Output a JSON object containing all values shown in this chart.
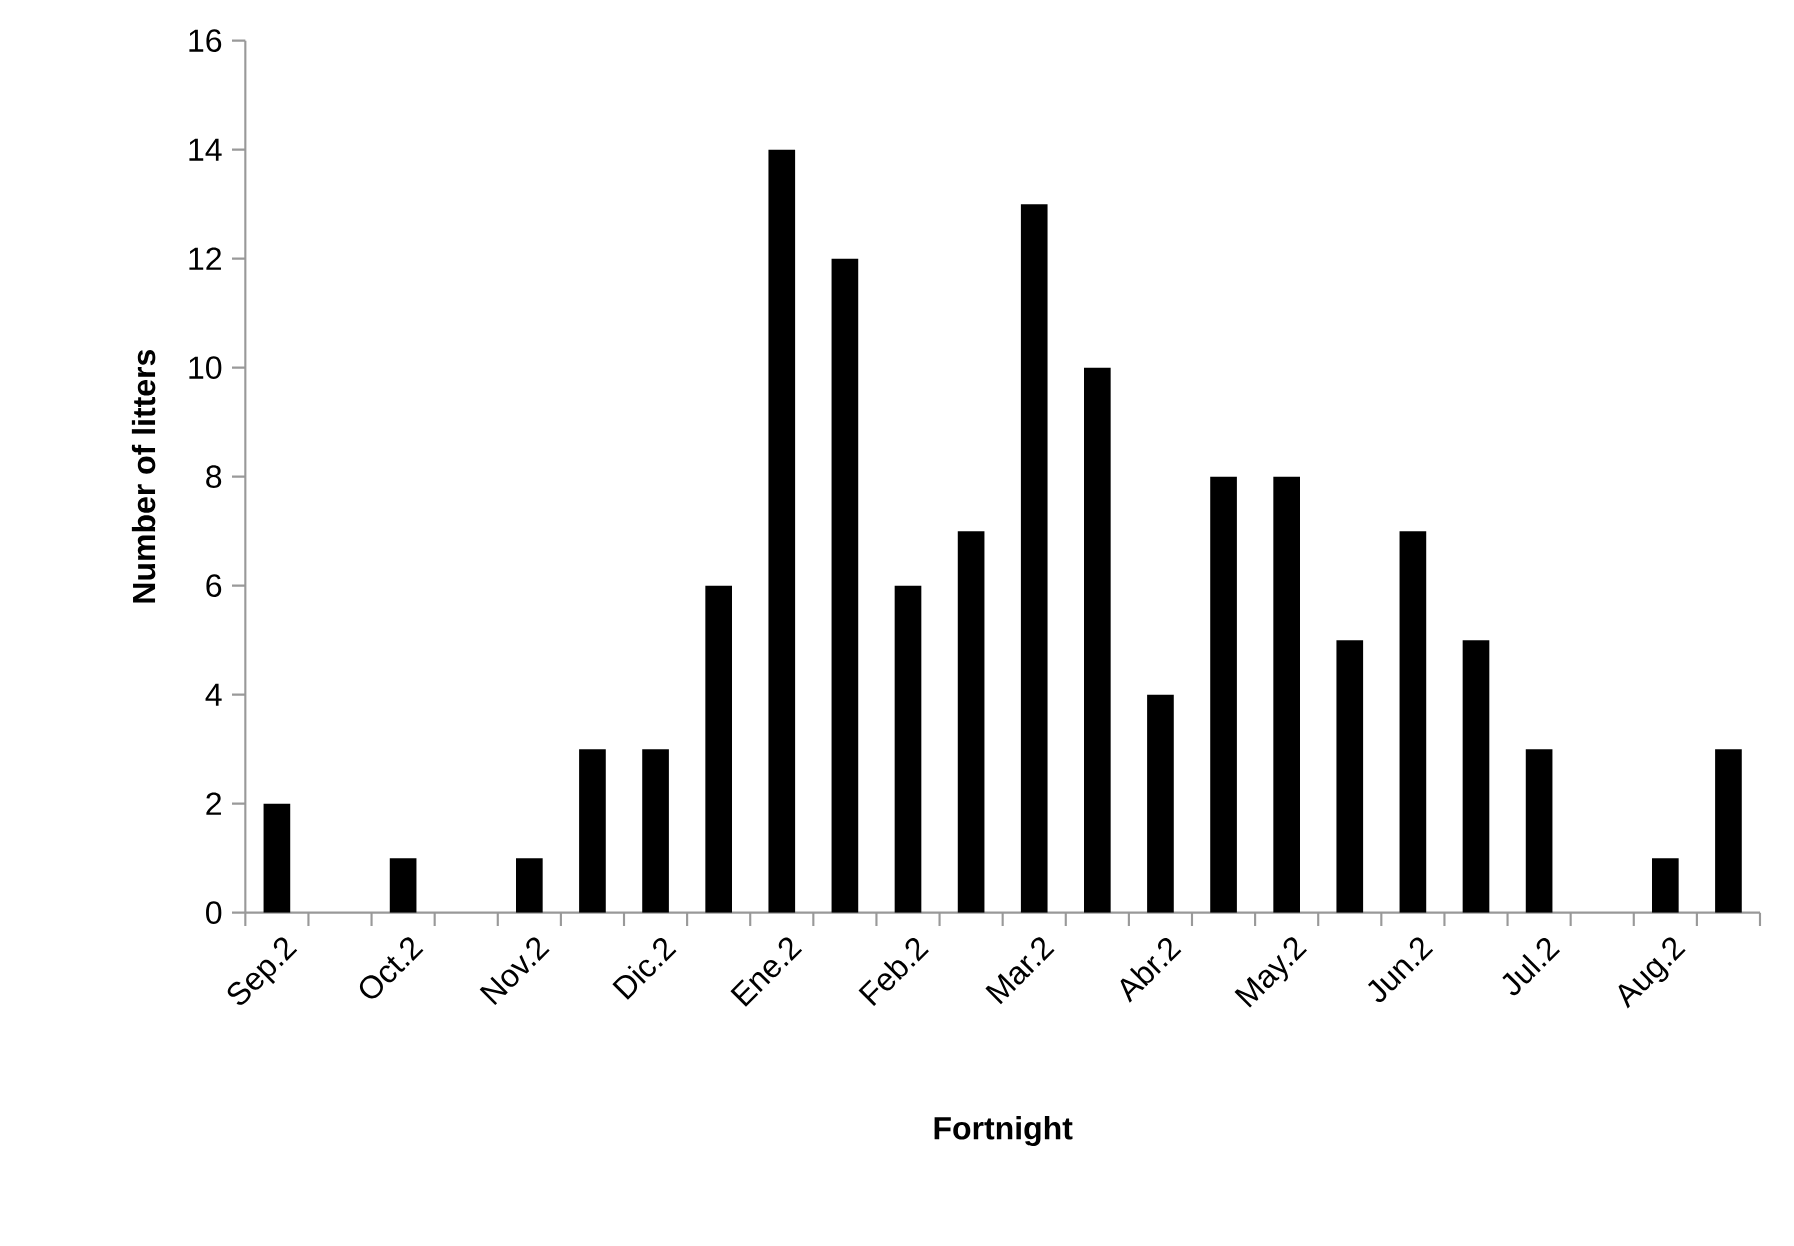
{
  "chart_data": {
    "type": "bar",
    "xlabel": "Fortnight",
    "ylabel": "Number of litters",
    "categories": [
      "Sep.2",
      null,
      "Oct.2",
      null,
      "Nov.2",
      null,
      "Dic.2",
      null,
      "Ene.2",
      null,
      "Feb.2",
      null,
      "Mar.2",
      null,
      "Abr.2",
      null,
      "May.2",
      null,
      "Jun.2",
      null,
      "Jul.2",
      null,
      "Aug.2",
      null
    ],
    "values": [
      2,
      0,
      1,
      0,
      1,
      3,
      3,
      6,
      14,
      12,
      6,
      7,
      13,
      10,
      4,
      8,
      8,
      5,
      7,
      5,
      3,
      0,
      1,
      3
    ],
    "color": "#000000",
    "ylim": [
      0,
      16
    ],
    "yticks": [
      0,
      2,
      4,
      6,
      8,
      10,
      12,
      14,
      16
    ]
  }
}
